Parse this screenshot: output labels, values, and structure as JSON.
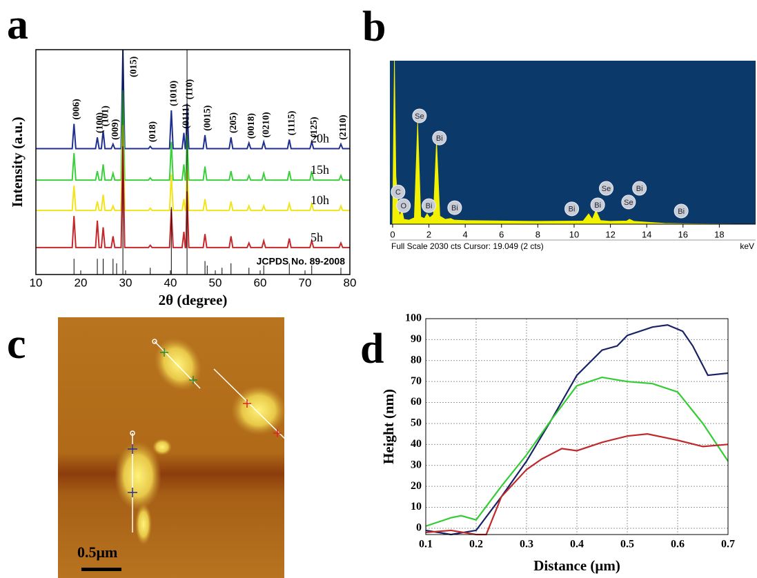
{
  "chart_data": [
    {
      "type": "line",
      "panel_label": "a",
      "xlabel": "2θ (degree)",
      "ylabel": "Intensity (a.u.)",
      "xlim": [
        10,
        80
      ],
      "xticks": [
        10,
        20,
        30,
        40,
        50,
        60,
        70,
        80
      ],
      "ylim": [
        0,
        100
      ],
      "x": [
        10,
        18.1,
        18.5,
        18.9,
        23.3,
        23.7,
        24.1,
        24.6,
        25.0,
        25.4,
        26.8,
        27.2,
        27.6,
        29.0,
        29.4,
        29.8,
        35.1,
        35.5,
        35.9,
        39.8,
        40.2,
        40.6,
        42.6,
        43.0,
        43.3,
        43.45,
        43.7,
        44.1,
        47.3,
        47.7,
        48.1,
        53.1,
        53.5,
        53.9,
        57.1,
        57.5,
        57.9,
        60.4,
        60.8,
        61.2,
        66.1,
        66.5,
        66.9,
        71.1,
        71.5,
        71.9,
        77.6,
        78,
        78.4,
        80
      ],
      "series": [
        {
          "name": "20h",
          "color": "#1f2f8f",
          "values": [
            56,
            56,
            67,
            56,
            56,
            61,
            56,
            56,
            64,
            56,
            56,
            58,
            56,
            56,
            100,
            56,
            56,
            57,
            56,
            56,
            73,
            56,
            56,
            63,
            56,
            56,
            76,
            56,
            56,
            62,
            56,
            56,
            61,
            56,
            56,
            58.5,
            56,
            56,
            59,
            56,
            56,
            60,
            56,
            56,
            59,
            56,
            56,
            58,
            56,
            56
          ]
        },
        {
          "name": "15h",
          "color": "#3ccf3c",
          "values": [
            42,
            42,
            54,
            42,
            42,
            46,
            42,
            42,
            49,
            42,
            42,
            45,
            42,
            42,
            82,
            42,
            42,
            43,
            42,
            42,
            59,
            42,
            42,
            49,
            42,
            42,
            62,
            42,
            42,
            48,
            42,
            42,
            46,
            42,
            42,
            44,
            42,
            42,
            45,
            42,
            42,
            46,
            42,
            42,
            46,
            42,
            42,
            44,
            42,
            42
          ]
        },
        {
          "name": "10h",
          "color": "#f2e41a",
          "values": [
            28.5,
            28.5,
            39.5,
            28.5,
            28.5,
            32.5,
            28.5,
            28.5,
            35.5,
            28.5,
            28.5,
            30.5,
            28.5,
            28.5,
            66.5,
            28.5,
            28.5,
            29.5,
            28.5,
            28.5,
            44.5,
            28.5,
            28.5,
            33.5,
            28.5,
            28.5,
            46.5,
            28.5,
            28.5,
            33.5,
            28.5,
            28.5,
            32.5,
            28.5,
            28.5,
            30.5,
            28.5,
            28.5,
            30.5,
            28.5,
            28.5,
            31.5,
            28.5,
            28.5,
            31.5,
            28.5,
            28.5,
            30.5,
            28.5,
            28.5
          ]
        },
        {
          "name": "5h",
          "color": "#c4282a",
          "values": [
            12,
            12,
            26,
            12,
            12,
            24,
            12,
            12,
            21,
            12,
            12,
            17,
            12,
            12,
            57,
            12,
            12,
            13,
            12,
            12,
            29,
            12,
            12,
            19,
            12,
            12,
            37,
            12,
            12,
            18,
            12,
            12,
            17,
            12,
            12,
            14,
            12,
            12,
            15,
            12,
            12,
            16,
            12,
            12,
            15,
            12,
            12,
            14,
            12,
            12
          ]
        }
      ],
      "reference": {
        "name": "JCPDS No. 89-2008",
        "color": "#000000",
        "x": [
          18.5,
          23.7,
          25.0,
          27.2,
          28.0,
          29.4,
          35.5,
          40.2,
          43.7,
          47.7,
          48.2,
          51.5,
          53.5,
          57.5,
          60.8,
          66.5,
          71.5,
          78
        ],
        "values": [
          7,
          7,
          7,
          7,
          5,
          100,
          3,
          30,
          100,
          6,
          4,
          3,
          5,
          3,
          4,
          5,
          4,
          3
        ]
      },
      "annotations": [
        {
          "text": "(006)",
          "x": 18.5
        },
        {
          "text": "(100)",
          "x": 23.7
        },
        {
          "text": "(101)",
          "x": 25.0
        },
        {
          "text": "(009)",
          "x": 27.2
        },
        {
          "text": "(015)",
          "x": 29.4
        },
        {
          "text": "(018)",
          "x": 35.5
        },
        {
          "text": "(1010)",
          "x": 40.2
        },
        {
          "text": "(0111)",
          "x": 43.0
        },
        {
          "text": "(110)",
          "x": 43.7
        },
        {
          "text": "(0015)",
          "x": 47.7
        },
        {
          "text": "(205)",
          "x": 53.5
        },
        {
          "text": "(0018)",
          "x": 57.5
        },
        {
          "text": "(0210)",
          "x": 60.8
        },
        {
          "text": "(1115)",
          "x": 66.5
        },
        {
          "text": "(125)",
          "x": 71.5
        },
        {
          "text": "(2110)",
          "x": 78
        }
      ]
    },
    {
      "type": "area",
      "panel_label": "b",
      "color": "#f2f200",
      "background": "#0b3a6a",
      "xlim": [
        -0.15,
        20
      ],
      "xticks": [
        0,
        2,
        4,
        6,
        8,
        10,
        12,
        14,
        16,
        18
      ],
      "ylim": [
        0,
        2030
      ],
      "x": [
        0,
        0.1,
        0.18,
        0.28,
        0.38,
        0.52,
        0.62,
        0.9,
        1.2,
        1.38,
        1.55,
        1.75,
        1.9,
        2.05,
        2.25,
        2.42,
        2.6,
        2.9,
        3.2,
        3.4,
        4,
        6,
        8,
        10.5,
        10.8,
        11.0,
        11.2,
        11.45,
        12,
        12.9,
        13.05,
        13.3,
        14,
        15,
        16,
        19
      ],
      "values": [
        0,
        2030,
        600,
        300,
        100,
        170,
        60,
        50,
        80,
        1259,
        90,
        70,
        128,
        80,
        120,
        1028,
        100,
        60,
        70,
        50,
        45,
        40,
        35,
        40,
        128,
        60,
        171,
        45,
        35,
        40,
        60,
        35,
        25,
        10,
        5,
        0
      ],
      "annotations": [
        {
          "text": "C",
          "x": 0.3,
          "y": 400
        },
        {
          "text": "O",
          "x": 0.6,
          "y": 230
        },
        {
          "text": "Se",
          "x": 1.48,
          "y": 1345
        },
        {
          "text": "Bi",
          "x": 2.58,
          "y": 1070
        },
        {
          "text": "Bi",
          "x": 2.0,
          "y": 230
        },
        {
          "text": "Bi",
          "x": 3.42,
          "y": 205
        },
        {
          "text": "Bi",
          "x": 9.87,
          "y": 190
        },
        {
          "text": "Bi",
          "x": 11.3,
          "y": 240
        },
        {
          "text": "Se",
          "x": 11.77,
          "y": 445
        },
        {
          "text": "Se",
          "x": 13.0,
          "y": 275
        },
        {
          "text": "Bi",
          "x": 13.6,
          "y": 445
        },
        {
          "text": "Bi",
          "x": 15.9,
          "y": 163
        }
      ],
      "footer": "Full Scale 2030 cts Cursor: 19.049  (2 cts)",
      "xunit": "keV"
    },
    {
      "type": "line",
      "panel_label": "d",
      "xlabel": "Distance (μm)",
      "ylabel": "Height (nm)",
      "grid": true,
      "xlim": [
        0.1,
        0.7
      ],
      "xticks": [
        0.1,
        0.2,
        0.3,
        0.4,
        0.5,
        0.6,
        0.7
      ],
      "ylim": [
        -3,
        100
      ],
      "yticks": [
        0,
        10,
        20,
        30,
        40,
        50,
        60,
        70,
        80,
        90,
        100
      ],
      "series": [
        {
          "color": "#1a2266",
          "x": [
            0.1,
            0.15,
            0.2,
            0.25,
            0.3,
            0.35,
            0.4,
            0.45,
            0.48,
            0.5,
            0.55,
            0.58,
            0.61,
            0.63,
            0.66,
            0.7
          ],
          "values": [
            -1,
            -3,
            -1,
            15,
            32,
            52,
            73,
            85,
            87,
            92,
            96,
            97,
            94,
            87,
            73,
            74
          ]
        },
        {
          "color": "#33cc33",
          "x": [
            0.1,
            0.15,
            0.17,
            0.2,
            0.25,
            0.3,
            0.35,
            0.4,
            0.45,
            0.5,
            0.55,
            0.6,
            0.65,
            0.7
          ],
          "values": [
            1,
            5,
            6,
            4,
            20,
            35,
            52,
            68,
            72,
            70,
            69,
            65,
            50,
            32
          ]
        },
        {
          "color": "#c0282a",
          "x": [
            0.1,
            0.15,
            0.2,
            0.22,
            0.25,
            0.3,
            0.33,
            0.37,
            0.4,
            0.45,
            0.5,
            0.54,
            0.6,
            0.65,
            0.7
          ],
          "values": [
            -2,
            -1,
            -3,
            -3,
            15,
            28,
            33,
            38,
            37,
            41,
            44,
            45,
            42,
            39,
            40
          ]
        }
      ]
    }
  ],
  "image": {
    "panel_label": "c",
    "scale_bar": "0.5μm"
  }
}
